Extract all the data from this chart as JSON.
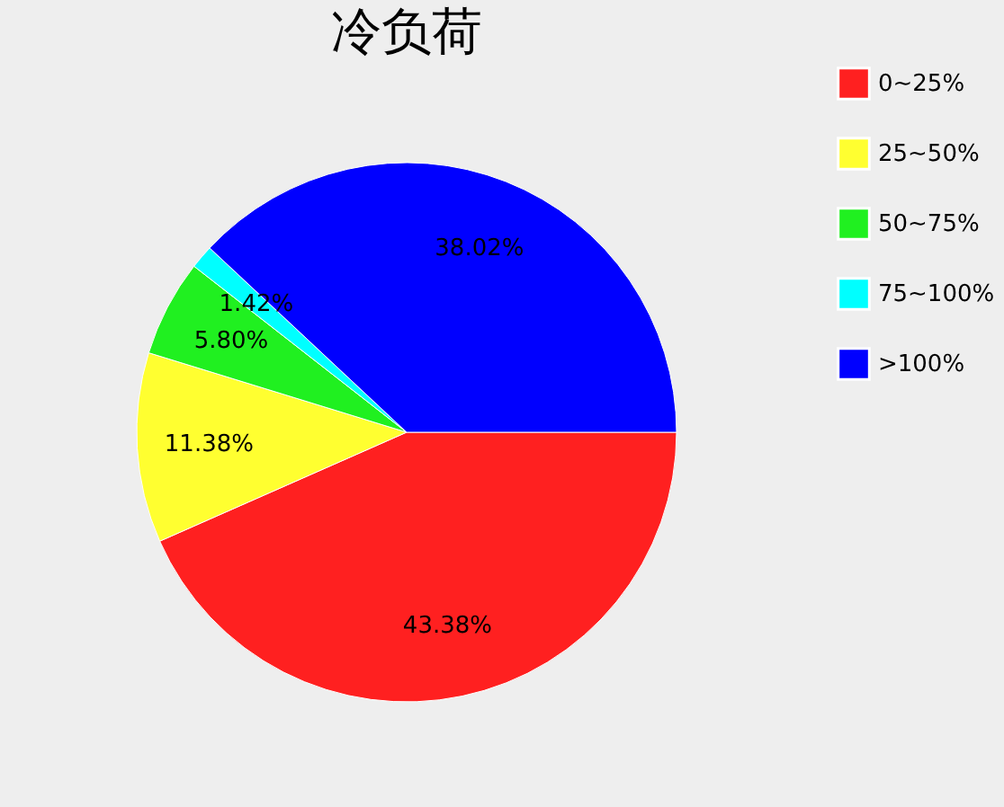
{
  "chart_data": {
    "type": "pie",
    "title": "冷负荷",
    "categories": [
      "0~25%",
      "25~50%",
      "50~75%",
      "75~100%",
      ">100%"
    ],
    "values": [
      43.38,
      11.38,
      5.8,
      1.42,
      38.02
    ],
    "colors": [
      "#ff2020",
      "#ffff30",
      "#20f020",
      "#00ffff",
      "#0000ff"
    ],
    "value_labels": [
      "43.38%",
      "11.38%",
      "5.80%",
      "1.42%",
      "38.02%"
    ],
    "legend": "right"
  }
}
